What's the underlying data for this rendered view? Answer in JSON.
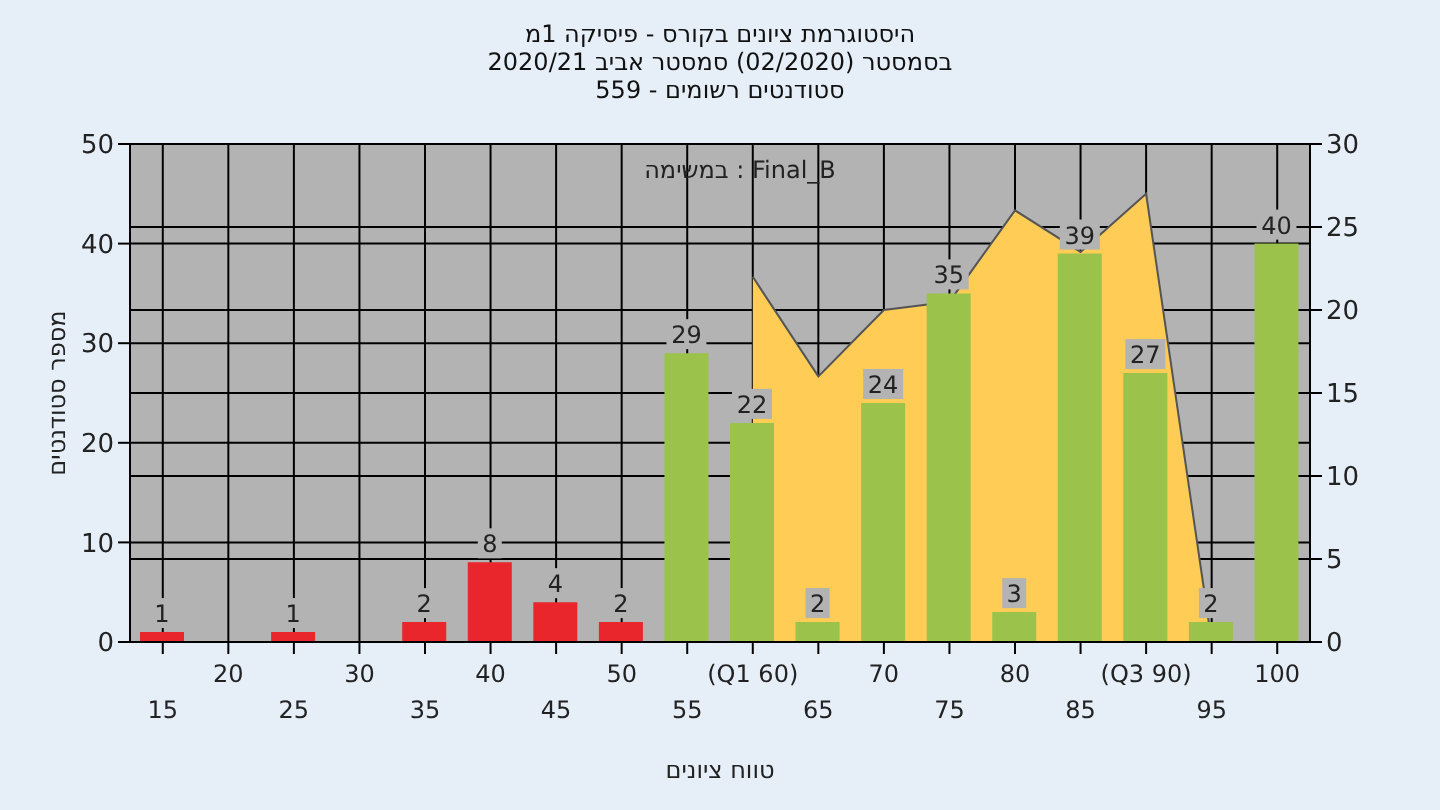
{
  "chart_data": {
    "type": "bar",
    "title": "היסטוגרמת ציונים בקורס - פיסיקה 1מ",
    "subtitle": "בסמסטר  (02/2020)  סמסטר אביב 2020/21\nסטודנטים רשומים - 559",
    "xlabel": "טווח ציונים",
    "ylabel": "מספר סטודנטים",
    "annotations": [
      "במשימה : Final_B"
    ],
    "categories": [
      "15",
      "20",
      "25",
      "30",
      "35",
      "40",
      "45",
      "50",
      "55",
      "(Q1 60)",
      "65",
      "70",
      "75",
      "80",
      "85",
      "(Q3 90)",
      "95",
      "100"
    ],
    "series": [
      {
        "type": "area",
        "axis": "y2",
        "color": "#ffcc55",
        "values": [
          null,
          null,
          null,
          null,
          null,
          null,
          null,
          null,
          null,
          22,
          16,
          20,
          20.5,
          26,
          23.5,
          27,
          0,
          null
        ]
      },
      {
        "values": [
          1,
          0,
          1,
          0,
          2,
          8,
          4,
          2,
          29,
          22,
          2,
          24,
          35,
          3,
          39,
          27,
          2,
          40
        ],
        "colors": [
          "#e8262b",
          "#e8262b",
          "#e8262b",
          "#e8262b",
          "#e8262b",
          "#e8262b",
          "#e8262b",
          "#e8262b",
          "#9bc24a",
          "#9bc24a",
          "#9bc24a",
          "#9bc24a",
          "#9bc24a",
          "#9bc24a",
          "#9bc24a",
          "#9bc24a",
          "#9bc24a",
          "#9bc24a"
        ],
        "value_labels": [
          "1",
          null,
          "1",
          null,
          "2",
          "8",
          "4",
          "2",
          "29",
          "22",
          "2",
          "24",
          "35",
          "3",
          "39",
          "27",
          "2",
          "40"
        ]
      }
    ],
    "ylim": [
      0,
      50
    ],
    "yticks": [
      0,
      10,
      20,
      30,
      40,
      50
    ],
    "y2lim": [
      0,
      30
    ],
    "y2ticks": [
      0,
      5,
      10,
      15,
      20,
      25,
      30
    ],
    "grid": true,
    "legend": false
  }
}
